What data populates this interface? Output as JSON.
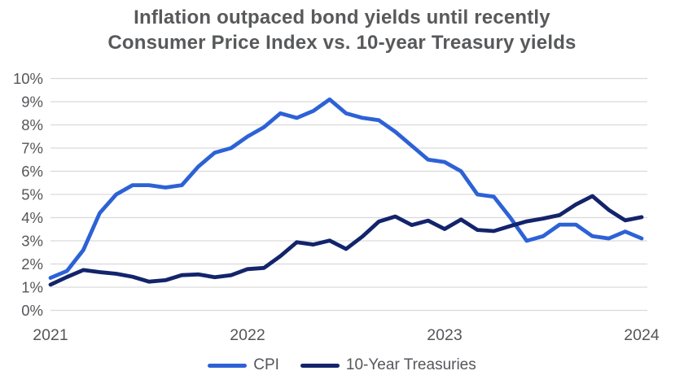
{
  "title": {
    "line1": "Inflation outpaced bond yields until recently",
    "line2": "Consumer Price Index vs. 10-year Treasury yields"
  },
  "colors": {
    "title_text": "#58595b",
    "axis_text": "#55565a",
    "gridline": "#d9d9d9",
    "background": "#ffffff",
    "cpi_line": "#2d62d6",
    "treasury_line": "#13246b"
  },
  "chart_data": {
    "type": "line",
    "title": "Inflation outpaced bond yields until recently",
    "subtitle": "Consumer Price Index vs. 10-year Treasury yields",
    "x_unit": "monthly, Jan 2021 to Jan 2024",
    "x_tick_labels": [
      "2021",
      "2022",
      "2023",
      "2024"
    ],
    "y_tick_labels": [
      "0%",
      "1%",
      "2%",
      "3%",
      "4%",
      "5%",
      "6%",
      "7%",
      "8%",
      "9%",
      "10%"
    ],
    "ylim": [
      0,
      10
    ],
    "grid": "horizontal",
    "legend_position": "bottom",
    "series": [
      {
        "name": "CPI",
        "color": "#2d62d6",
        "values": [
          1.4,
          1.7,
          2.6,
          4.2,
          5.0,
          5.4,
          5.4,
          5.3,
          5.4,
          6.2,
          6.8,
          7.0,
          7.5,
          7.9,
          8.5,
          8.3,
          8.6,
          9.1,
          8.5,
          8.3,
          8.2,
          7.7,
          7.1,
          6.5,
          6.4,
          6.0,
          5.0,
          4.9,
          4.0,
          3.0,
          3.2,
          3.7,
          3.7,
          3.2,
          3.1,
          3.4,
          3.1
        ]
      },
      {
        "name": "10-Year Treasuries",
        "color": "#13246b",
        "values": [
          1.11,
          1.44,
          1.74,
          1.65,
          1.58,
          1.45,
          1.24,
          1.3,
          1.52,
          1.55,
          1.43,
          1.52,
          1.78,
          1.83,
          2.34,
          2.94,
          2.84,
          3.01,
          2.65,
          3.19,
          3.83,
          4.05,
          3.68,
          3.87,
          3.51,
          3.92,
          3.47,
          3.42,
          3.64,
          3.84,
          3.96,
          4.11,
          4.57,
          4.93,
          4.33,
          3.88,
          4.02
        ]
      }
    ]
  }
}
